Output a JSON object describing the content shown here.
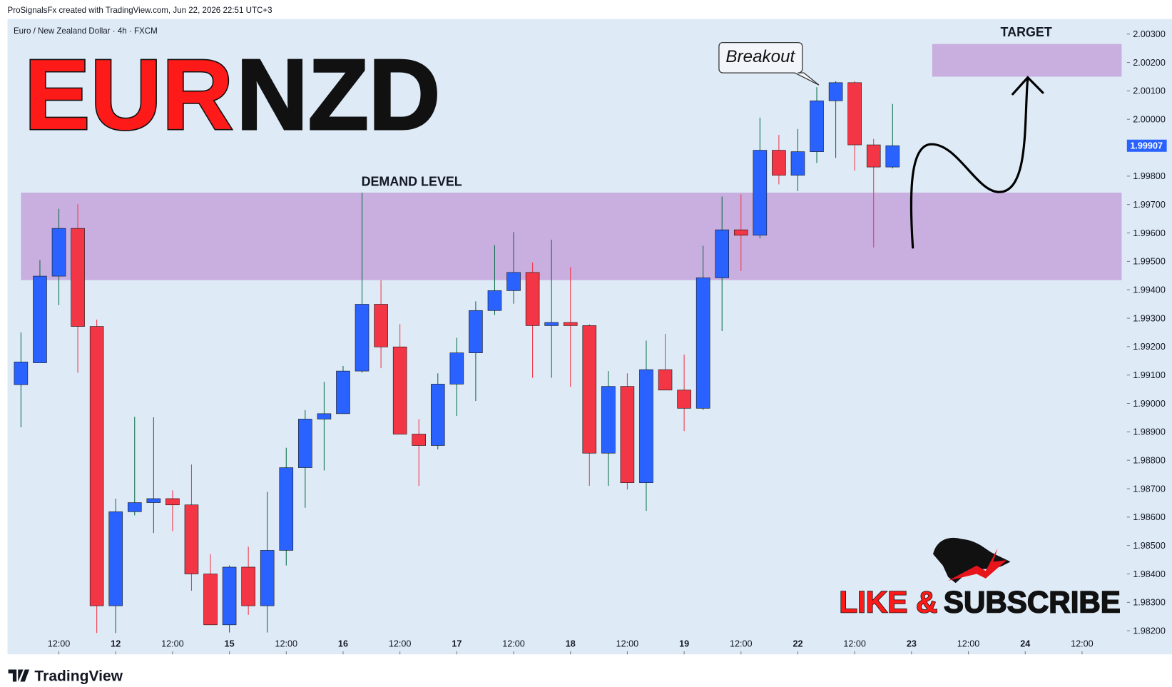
{
  "header": {
    "credit": "ProSignalsFx created with TradingView.com, Jun 22, 2026 22:51 UTC+3",
    "symbol": "Euro / New Zealand Dollar · 4h · FXCM"
  },
  "headline": [
    "EUR",
    "NZD"
  ],
  "promo": [
    "LIKE &",
    "SUBSCRIBE"
  ],
  "brand": "TradingView",
  "chart_data": {
    "type": "candlestick",
    "up_color": "#2962ff",
    "down_color": "#f23645",
    "up_wick_color": "#0b6b45",
    "down_wick_color": "#f23645",
    "x": [
      0,
      1,
      2,
      3,
      4,
      5,
      6,
      7,
      8,
      9,
      10,
      11,
      12,
      13,
      14,
      15,
      16,
      17,
      18,
      19,
      20,
      21,
      22,
      23,
      24,
      25,
      26,
      27,
      28,
      29,
      30,
      31,
      32,
      33,
      34,
      35,
      36,
      37,
      38,
      39,
      40,
      41,
      42,
      43,
      44,
      45,
      46
    ],
    "open": [
      1.99066,
      1.99143,
      1.99448,
      1.99616,
      1.99271,
      1.98288,
      1.98619,
      1.98651,
      1.98665,
      1.98643,
      1.984,
      1.98221,
      1.98424,
      1.98288,
      1.98483,
      1.98774,
      1.98945,
      1.98964,
      1.99114,
      1.99349,
      1.99199,
      1.98892,
      1.98852,
      1.99068,
      1.99178,
      1.99327,
      1.99397,
      1.99461,
      1.99274,
      1.99285,
      1.99274,
      1.98825,
      1.9906,
      1.98721,
      1.99119,
      1.99047,
      1.98983,
      1.99442,
      1.99611,
      1.99592,
      1.99891,
      1.99803,
      1.99886,
      2.00065,
      2.00129,
      1.9991,
      1.99832
    ],
    "high": [
      1.9925,
      1.99504,
      1.99685,
      1.99701,
      1.99295,
      1.98665,
      1.98953,
      1.98951,
      1.98694,
      1.98785,
      1.9847,
      1.9843,
      1.98496,
      1.98689,
      1.98844,
      1.98977,
      1.99076,
      1.99132,
      1.99742,
      1.99434,
      1.99279,
      1.98945,
      1.99106,
      1.99231,
      1.99359,
      1.99557,
      1.99603,
      1.99496,
      1.99576,
      1.9948,
      1.99279,
      1.99114,
      1.99106,
      1.99221,
      1.99245,
      1.99172,
      1.99555,
      1.99728,
      1.99736,
      2.00006,
      1.99945,
      1.99966,
      2.00113,
      2.00134,
      2.00134,
      1.99931,
      2.00054
    ],
    "low": [
      1.98916,
      1.99143,
      1.99346,
      1.99108,
      1.98192,
      1.98192,
      1.98606,
      1.98544,
      1.9855,
      1.98341,
      1.98221,
      1.98194,
      1.98256,
      1.98194,
      1.9843,
      1.98633,
      1.98764,
      1.98964,
      1.99108,
      1.99124,
      1.98892,
      1.9871,
      1.98838,
      1.98956,
      1.99009,
      1.99311,
      1.99351,
      1.9909,
      1.9909,
      1.99058,
      1.9871,
      1.9871,
      1.98697,
      1.98622,
      1.99047,
      1.98903,
      1.98977,
      1.99255,
      1.99466,
      1.99581,
      1.99771,
      1.99747,
      1.99846,
      1.99864,
      1.99819,
      1.99549,
      1.99827
    ],
    "close": [
      1.99146,
      1.99448,
      1.99616,
      1.99271,
      1.98288,
      1.98619,
      1.98651,
      1.98665,
      1.98643,
      1.984,
      1.98221,
      1.98424,
      1.98288,
      1.98483,
      1.98774,
      1.98945,
      1.98964,
      1.99114,
      1.99349,
      1.99199,
      1.98892,
      1.98852,
      1.99068,
      1.99178,
      1.99327,
      1.99397,
      1.99461,
      1.99274,
      1.99285,
      1.99274,
      1.98825,
      1.9906,
      1.98721,
      1.99119,
      1.99047,
      1.98983,
      1.99442,
      1.99611,
      1.99592,
      1.99891,
      1.99803,
      1.99886,
      2.00065,
      2.00129,
      1.9991,
      1.99832,
      1.99907
    ],
    "xlim": [
      -0.71,
      58.09
    ],
    "xticks": [
      {
        "value": 2,
        "label": "12:00"
      },
      {
        "value": 5,
        "label": "12"
      },
      {
        "value": 8,
        "label": "12:00"
      },
      {
        "value": 11,
        "label": "15"
      },
      {
        "value": 14,
        "label": "12:00"
      },
      {
        "value": 17,
        "label": "16"
      },
      {
        "value": 20,
        "label": "12:00"
      },
      {
        "value": 23,
        "label": "17"
      },
      {
        "value": 26,
        "label": "12:00"
      },
      {
        "value": 29,
        "label": "18"
      },
      {
        "value": 32,
        "label": "12:00"
      },
      {
        "value": 35,
        "label": "19"
      },
      {
        "value": 38,
        "label": "12:00"
      },
      {
        "value": 41,
        "label": "22"
      },
      {
        "value": 44,
        "label": "12:00"
      },
      {
        "value": 47,
        "label": "23"
      },
      {
        "value": 50,
        "label": "12:00"
      },
      {
        "value": 53,
        "label": "24"
      },
      {
        "value": 56,
        "label": "12:00"
      }
    ],
    "ylim": [
      1.98117,
      2.00353
    ],
    "yticks": [
      {
        "value": 1.982,
        "label": "1.98200"
      },
      {
        "value": 1.983,
        "label": "1.98300"
      },
      {
        "value": 1.984,
        "label": "1.98400"
      },
      {
        "value": 1.985,
        "label": "1.98500"
      },
      {
        "value": 1.986,
        "label": "1.98600"
      },
      {
        "value": 1.987,
        "label": "1.98700"
      },
      {
        "value": 1.988,
        "label": "1.98800"
      },
      {
        "value": 1.989,
        "label": "1.98900"
      },
      {
        "value": 1.99,
        "label": "1.99000"
      },
      {
        "value": 1.991,
        "label": "1.99100"
      },
      {
        "value": 1.992,
        "label": "1.99200"
      },
      {
        "value": 1.993,
        "label": "1.99300"
      },
      {
        "value": 1.994,
        "label": "1.99400"
      },
      {
        "value": 1.995,
        "label": "1.99500"
      },
      {
        "value": 1.996,
        "label": "1.99600"
      },
      {
        "value": 1.997,
        "label": "1.99700"
      },
      {
        "value": 1.998,
        "label": "1.99800"
      },
      {
        "value": 1.999,
        "label": "1.99900"
      },
      {
        "value": 2.0,
        "label": "2.00000"
      },
      {
        "value": 2.001,
        "label": "2.00100"
      },
      {
        "value": 2.002,
        "label": "2.00200"
      },
      {
        "value": 2.003,
        "label": "2.00300"
      }
    ],
    "zones": [
      {
        "label": "DEMAND LEVEL",
        "x": [
          0,
          58.09
        ],
        "y": [
          1.99434,
          1.99742
        ],
        "color": "#c9aee0"
      },
      {
        "label": "TARGET",
        "x": [
          48.09,
          58.09
        ],
        "y": [
          2.0015,
          2.00265
        ],
        "color": "#c9aee0"
      }
    ],
    "annotation": "Breakout"
  }
}
